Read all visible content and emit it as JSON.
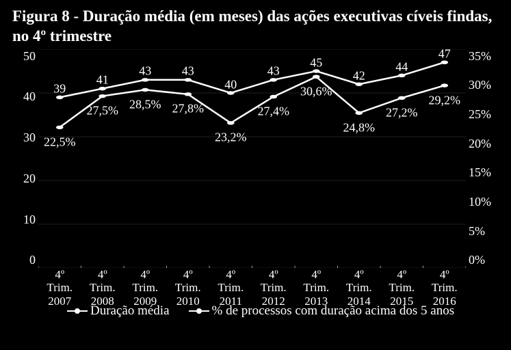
{
  "title_line1": "Figura 8 - Duração média (em meses) das ações executivas cíveis findas,",
  "title_line2": "no 4º trimestre",
  "chart": {
    "type": "line-dual-axis",
    "background_color": "#000000",
    "line_color": "#ffffff",
    "text_color": "#ffffff",
    "grid_color": "#888888",
    "marker": "circle",
    "marker_size": 5,
    "line_width": 2.5,
    "title_fontsize": 23,
    "axis_fontsize": 18,
    "xlabel_fontsize": 17,
    "legend_fontsize": 19,
    "categories": [
      [
        "4º",
        "Trim.",
        "2007"
      ],
      [
        "4º",
        "Trim.",
        "2008"
      ],
      [
        "4º",
        "Trim.",
        "2009"
      ],
      [
        "4º",
        "Trim.",
        "2010"
      ],
      [
        "4º",
        "Trim.",
        "2011"
      ],
      [
        "4º",
        "Trim.",
        "2012"
      ],
      [
        "4º",
        "Trim.",
        "2013"
      ],
      [
        "4º",
        "Trim.",
        "2014"
      ],
      [
        "4º",
        "Trim.",
        "2015"
      ],
      [
        "4º",
        "Trim.",
        "2016"
      ]
    ],
    "left_axis": {
      "min": 0,
      "max": 50,
      "tick_step": 10
    },
    "right_axis": {
      "min": 0,
      "max": 35,
      "tick_step": 5,
      "suffix": "%"
    },
    "series": [
      {
        "name": "Duração média",
        "axis": "left",
        "values": [
          39,
          41,
          43,
          43,
          40,
          43,
          45,
          42,
          44,
          47
        ],
        "labels": [
          "39",
          "41",
          "43",
          "43",
          "40",
          "43",
          "45",
          "42",
          "44",
          "47"
        ],
        "label_dy": -12
      },
      {
        "name": "% de processos com duração acima dos 5 anos",
        "axis": "right",
        "values": [
          22.5,
          27.5,
          28.5,
          27.8,
          23.2,
          27.4,
          30.6,
          24.8,
          27.2,
          29.2
        ],
        "labels": [
          "22,5%",
          "27,5%",
          "28,5%",
          "27,8%",
          "23,2%",
          "27,4%",
          "30,6%",
          "24,8%",
          "27,2%",
          "29,2%"
        ],
        "label_dy": 22
      }
    ]
  },
  "legend": {
    "item1": "Duração média",
    "item2": "% de processos com duração acima dos 5 anos"
  }
}
